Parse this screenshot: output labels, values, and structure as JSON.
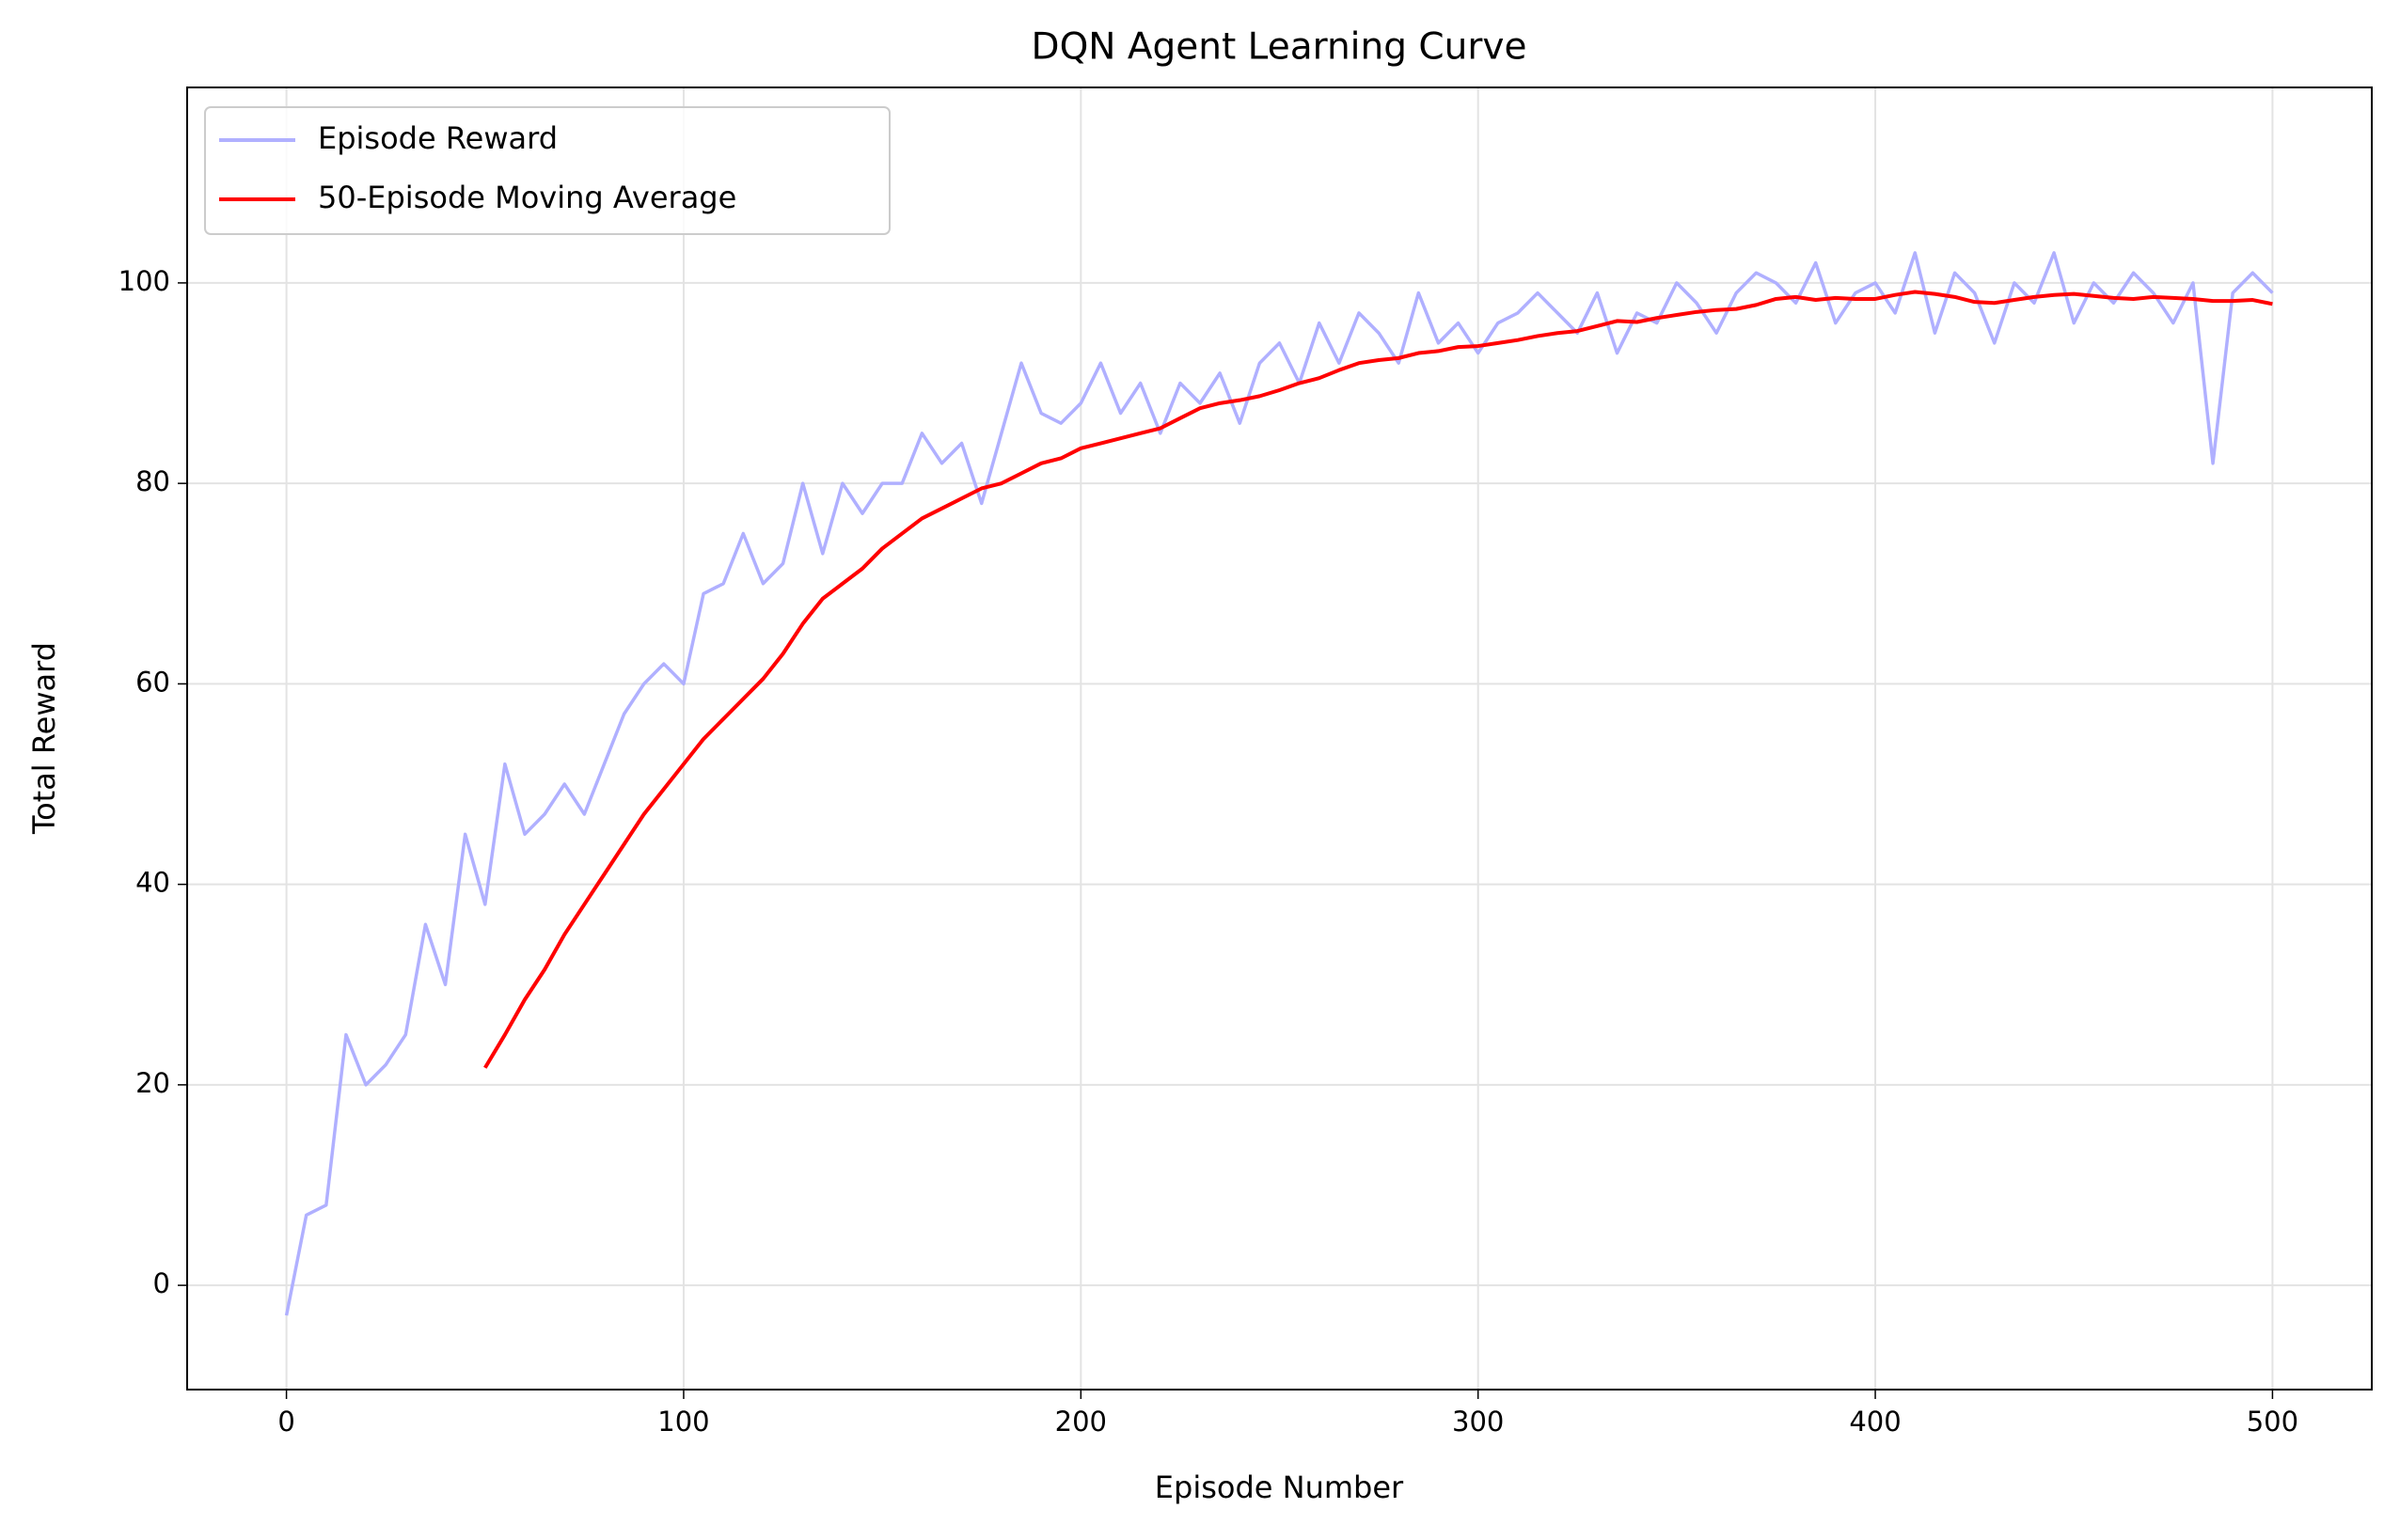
{
  "chart_data": {
    "type": "line",
    "title": "DQN Agent Learning Curve",
    "x_label": "Episode Number",
    "y_label": "Total Reward",
    "x": [
      0,
      5,
      10,
      15,
      20,
      25,
      30,
      35,
      40,
      45,
      50,
      55,
      60,
      65,
      70,
      75,
      80,
      85,
      90,
      95,
      100,
      105,
      110,
      115,
      120,
      125,
      130,
      135,
      140,
      145,
      150,
      155,
      160,
      165,
      170,
      175,
      180,
      185,
      190,
      195,
      200,
      205,
      210,
      215,
      220,
      225,
      230,
      235,
      240,
      245,
      250,
      255,
      260,
      265,
      270,
      275,
      280,
      285,
      290,
      295,
      300,
      305,
      310,
      315,
      320,
      325,
      330,
      335,
      340,
      345,
      350,
      355,
      360,
      365,
      370,
      375,
      380,
      385,
      390,
      395,
      400,
      405,
      410,
      415,
      420,
      425,
      430,
      435,
      440,
      445,
      450,
      455,
      460,
      465,
      470,
      475,
      480,
      485,
      490,
      495,
      500
    ],
    "series": [
      {
        "name": "Episode Reward",
        "color": "#b0b0ff",
        "values": [
          -3,
          7,
          8,
          25,
          20,
          22,
          25,
          36,
          30,
          45,
          38,
          52,
          45,
          47,
          50,
          47,
          52,
          57,
          60,
          62,
          60,
          69,
          70,
          75,
          70,
          72,
          80,
          73,
          80,
          77,
          80,
          80,
          85,
          82,
          84,
          78,
          85,
          92,
          87,
          86,
          88,
          92,
          87,
          90,
          85,
          90,
          88,
          91,
          86,
          92,
          94,
          90,
          96,
          92,
          97,
          95,
          92,
          99,
          94,
          96,
          93,
          96,
          97,
          99,
          97,
          95,
          99,
          93,
          97,
          96,
          100,
          98,
          95,
          99,
          101,
          100,
          98,
          102,
          96,
          99,
          100,
          97,
          103,
          95,
          101,
          99,
          94,
          100,
          98,
          103,
          96,
          100,
          98,
          101,
          99,
          96,
          100,
          82,
          99,
          101,
          99
        ]
      },
      {
        "name": "50-Episode Moving Average",
        "color": "#ff0000",
        "values": [
          null,
          null,
          null,
          null,
          null,
          null,
          null,
          null,
          null,
          null,
          21.7,
          25,
          28.5,
          31.5,
          35,
          38,
          41,
          44,
          47,
          49.5,
          52,
          54.5,
          56.5,
          58.5,
          60.5,
          63,
          66,
          68.5,
          70,
          71.5,
          73.5,
          75,
          76.5,
          77.5,
          78.5,
          79.5,
          80,
          81,
          82,
          82.5,
          83.5,
          84,
          84.5,
          85,
          85.5,
          86.5,
          87.5,
          88,
          88.3,
          88.7,
          89.3,
          90,
          90.5,
          91.3,
          92,
          92.3,
          92.5,
          93,
          93.2,
          93.6,
          93.7,
          94,
          94.3,
          94.7,
          95,
          95.2,
          95.7,
          96.2,
          96.1,
          96.5,
          96.8,
          97.1,
          97.3,
          97.4,
          97.8,
          98.4,
          98.6,
          98.3,
          98.5,
          98.4,
          98.4,
          98.8,
          99.1,
          98.9,
          98.6,
          98.1,
          98,
          98.3,
          98.6,
          98.8,
          98.9,
          98.7,
          98.5,
          98.4,
          98.6,
          98.5,
          98.4,
          98.2,
          98.2,
          98.3,
          97.9
        ]
      }
    ],
    "xlim": [
      -25,
      525
    ],
    "ylim": [
      -10.4,
      119.5
    ],
    "xticks": [
      0,
      100,
      200,
      300,
      400,
      500
    ],
    "yticks": [
      0,
      20,
      40,
      60,
      80,
      100
    ],
    "grid": true,
    "legend": "upper left"
  }
}
